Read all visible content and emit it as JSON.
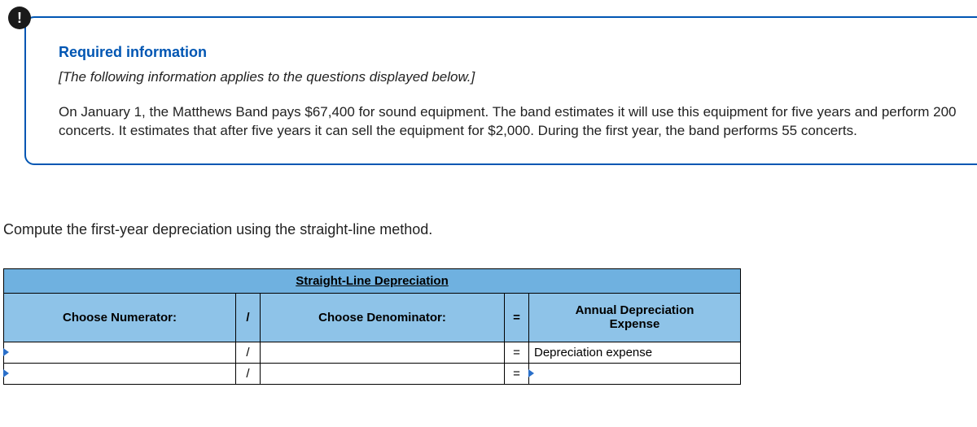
{
  "alert": {
    "glyph": "!"
  },
  "info": {
    "title": "Required information",
    "context_note": "[The following information applies to the questions displayed below.]",
    "scenario": "On January 1, the Matthews Band pays $67,400 for sound equipment. The band estimates it will use this equipment for five years and perform 200 concerts. It estimates that after five years it can sell the equipment for $2,000. During the first year, the band performs 55 concerts."
  },
  "instruction": "Compute the first-year depreciation using the straight-line method.",
  "table": {
    "title": "Straight-Line Depreciation",
    "columns": {
      "numerator": "Choose Numerator:",
      "op_divide": "/",
      "denominator": "Choose Denominator:",
      "op_equals": "=",
      "result_header_line1": "Annual Depreciation",
      "result_header_line2": "Expense"
    },
    "rows": [
      {
        "numerator": "",
        "op1": "/",
        "denominator": "",
        "op2": "=",
        "result": "Depreciation expense"
      },
      {
        "numerator": "",
        "op1": "/",
        "denominator": "",
        "op2": "=",
        "result": ""
      }
    ],
    "colors": {
      "header_bg": "#6fb1e0",
      "label_bg": "#8ec3e8",
      "border": "#000000",
      "marker": "#2a6fc9"
    }
  }
}
